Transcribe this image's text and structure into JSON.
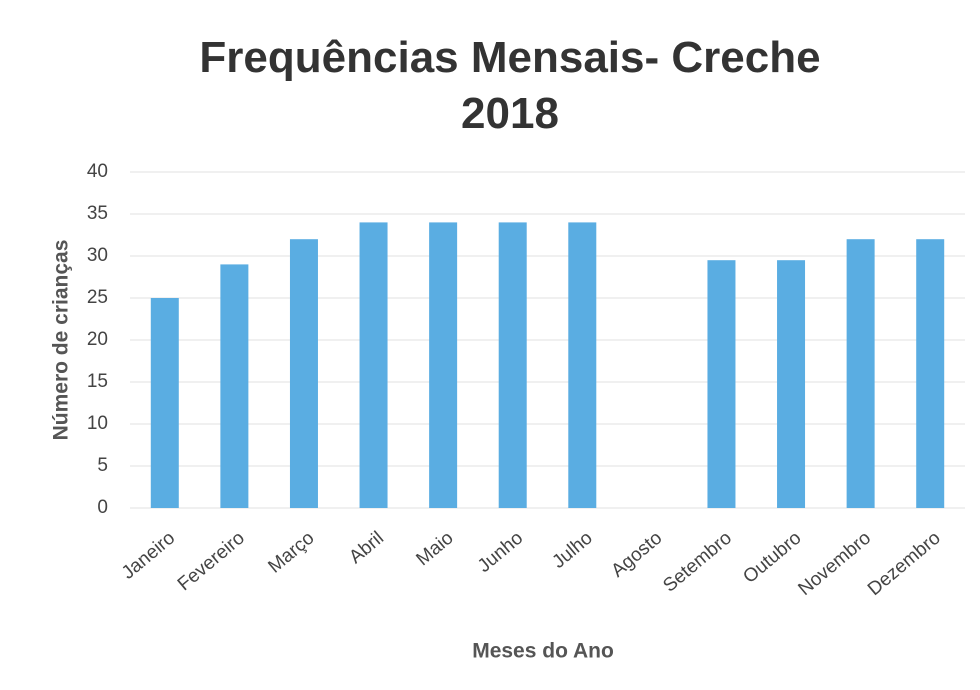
{
  "chart_data": {
    "type": "bar",
    "title": "Frequências Mensais- Creche 2018",
    "x_label": "Meses do Ano",
    "y_label": "Número de crianças",
    "categories": [
      "Janeiro",
      "Fevereiro",
      "Março",
      "Abril",
      "Maio",
      "Junho",
      "Julho",
      "Agosto",
      "Setembro",
      "Outubro",
      "Novembro",
      "Dezembro"
    ],
    "values": [
      25,
      29,
      32,
      34,
      34,
      34,
      34,
      0,
      29.5,
      29.5,
      32,
      32
    ],
    "color": "#5aade2",
    "ylim": [
      0,
      40
    ],
    "yticks": [
      0,
      5,
      10,
      15,
      20,
      25,
      30,
      35,
      40
    ],
    "grid": true
  }
}
